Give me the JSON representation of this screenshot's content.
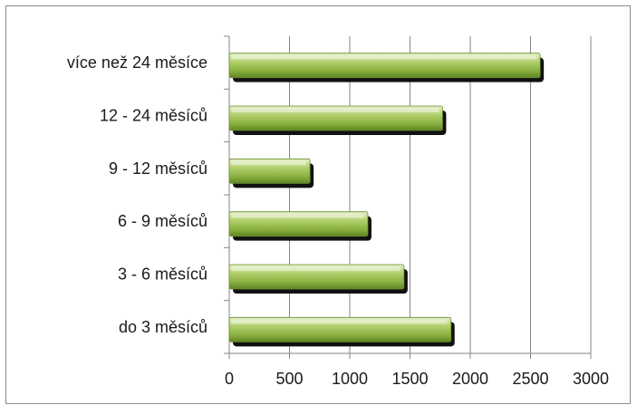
{
  "chart_data": {
    "type": "bar",
    "orientation": "horizontal",
    "categories": [
      "do 3 měsíců",
      "3 - 6 měsíců",
      "6 - 9 měsíců",
      "9 - 12 měsíců",
      "12 - 24 měsíců",
      "více než 24 měsíce"
    ],
    "values": [
      1840,
      1450,
      1150,
      670,
      1770,
      2580
    ],
    "title": "",
    "xlabel": "",
    "ylabel": "",
    "xlim": [
      0,
      3000
    ],
    "x_ticks": [
      "0",
      "500",
      "1000",
      "1500",
      "2000",
      "2500",
      "3000"
    ],
    "grid": "vertical major gridlines",
    "legend": "none",
    "colors": {
      "bar_fill": "#9bbb59",
      "bar_highlight": "#d7e4bd",
      "bar_shadow": "#111111",
      "gridline": "#868686"
    }
  }
}
